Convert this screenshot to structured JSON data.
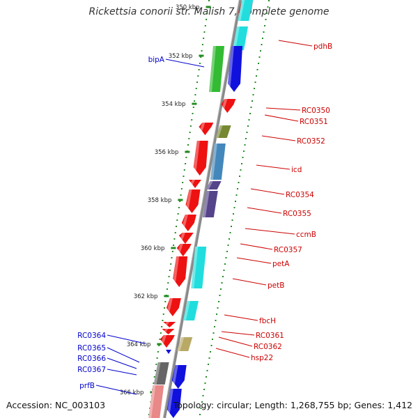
{
  "title": "Rickettsia conorii str. Malish 7, complete genome",
  "footer": {
    "accession": "Accession: NC_003103",
    "summary": "Topology: circular; Length: 1,268,755 bp; Genes: 1,412"
  },
  "ruler_labels": [
    "350 kbp",
    "352 kbp",
    "354 kbp",
    "356 kbp",
    "358 kbp",
    "360 kbp",
    "362 kbp",
    "364 kbp",
    "366 kbp"
  ],
  "gene_labels_left": [
    "bipA",
    "RC0364",
    "RC0365",
    "RC0366",
    "RC0367",
    "prfB"
  ],
  "gene_labels_right": [
    "pdhB",
    "RC0350",
    "RC0351",
    "RC0352",
    "icd",
    "RC0354",
    "RC0355",
    "ccmB",
    "RC0357",
    "petA",
    "petB",
    "fbcH",
    "RC0361",
    "RC0362",
    "hsp22"
  ],
  "colors": {
    "backbone": "#8a8a8a",
    "ruler_dots": "#228b22",
    "left_label": "#0000cc",
    "right_label": "#cc0000",
    "gene_red": "#ee1111",
    "gene_cyan": "#22dddd",
    "gene_blue": "#1111dd",
    "gene_green": "#33bb33",
    "gene_olive": "#778833",
    "gene_steel": "#4488bb",
    "gene_purple": "#55448a",
    "gene_gray": "#666666",
    "gene_pink": "#e88888",
    "gene_tan": "#b8aa66"
  }
}
